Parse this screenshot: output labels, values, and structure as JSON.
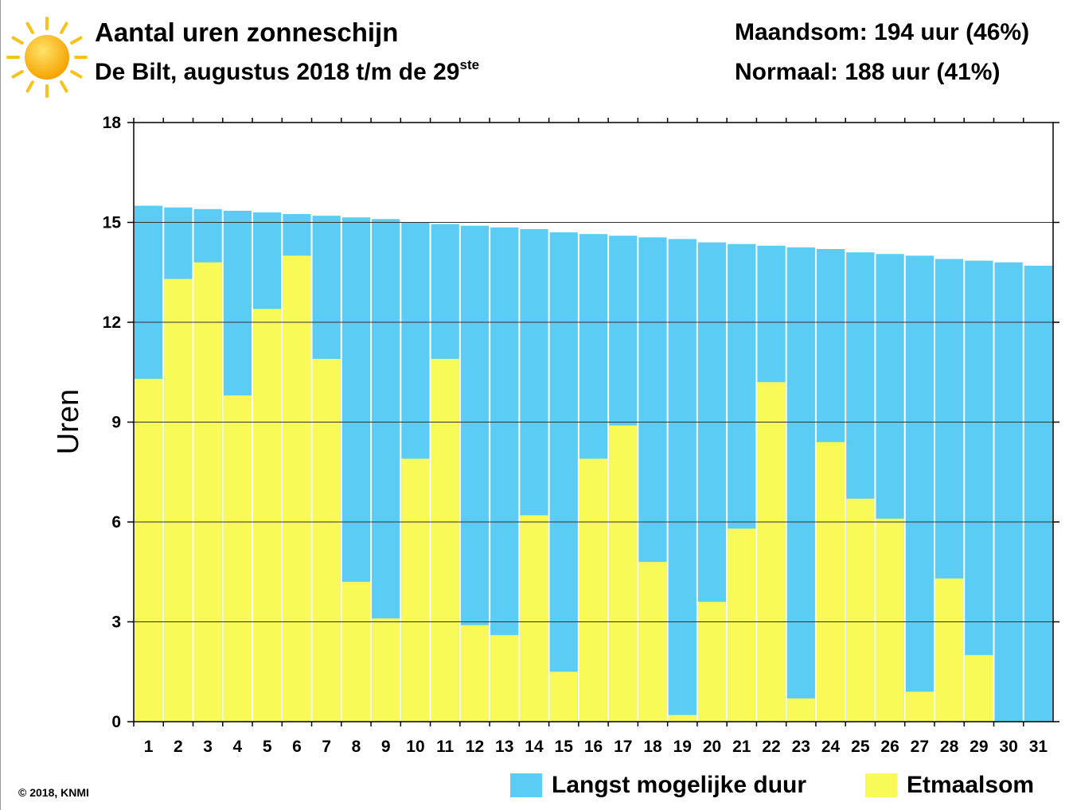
{
  "header": {
    "title": "Aantal uren zonneschijn",
    "subtitle": "De Bilt, augustus 2018 t/m de 29",
    "subtitle_sup": "ste",
    "month_sum": "Maandsom: 194 uur (46%)",
    "normal": "Normaal: 188 uur (41%)",
    "icon": "sun-icon"
  },
  "copyright": "© 2018, KNMI",
  "chart_data": {
    "type": "bar",
    "title": "Aantal uren zonneschijn",
    "ylabel": "Uren",
    "xlabel": "",
    "ylim": [
      0,
      18
    ],
    "yticks": [
      0,
      3,
      6,
      9,
      12,
      15,
      18
    ],
    "grid": true,
    "legend_placement": "bottom-right",
    "categories": [
      "1",
      "2",
      "3",
      "4",
      "5",
      "6",
      "7",
      "8",
      "9",
      "10",
      "11",
      "12",
      "13",
      "14",
      "15",
      "16",
      "17",
      "18",
      "19",
      "20",
      "21",
      "22",
      "23",
      "24",
      "25",
      "26",
      "27",
      "28",
      "29",
      "30",
      "31"
    ],
    "series": [
      {
        "name": "Langst mogelijke duur",
        "color": "#5bcdf5",
        "values": [
          15.5,
          15.45,
          15.4,
          15.35,
          15.3,
          15.25,
          15.2,
          15.15,
          15.1,
          15.0,
          14.95,
          14.9,
          14.85,
          14.8,
          14.7,
          14.65,
          14.6,
          14.55,
          14.5,
          14.4,
          14.35,
          14.3,
          14.25,
          14.2,
          14.1,
          14.05,
          14.0,
          13.9,
          13.85,
          13.8,
          13.7
        ]
      },
      {
        "name": "Etmaalsom",
        "color": "#f9f957",
        "values": [
          10.3,
          13.3,
          13.8,
          9.8,
          12.4,
          14.0,
          10.9,
          4.2,
          3.1,
          7.9,
          10.9,
          2.9,
          2.6,
          6.2,
          1.5,
          7.9,
          8.9,
          4.8,
          0.2,
          3.6,
          5.8,
          10.2,
          0.7,
          8.4,
          6.7,
          6.1,
          0.9,
          4.3,
          2.0,
          0,
          0
        ]
      }
    ]
  }
}
